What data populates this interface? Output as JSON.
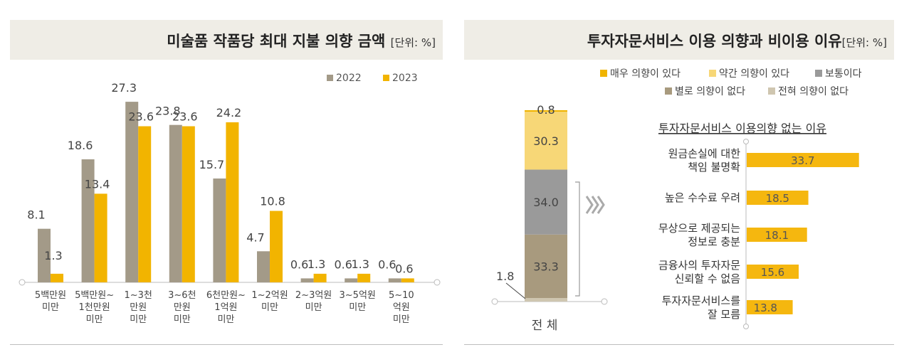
{
  "left_panel": {
    "title": "미술품 작품당 최대 지불 의향 금액",
    "unit": "[단위: %]"
  },
  "right_panel": {
    "title": "투자자문서비스 이용 의향과 비이용 이유",
    "unit": "[단위: %]",
    "legend": [
      "매우 의향이 있다",
      "약간 의향이 있다",
      "보통이다",
      "별로 의향이 없다",
      "전혀 의향이 없다"
    ],
    "reasons_title": "투자자문서비스 이용의향 없는 이유"
  },
  "colors": {
    "y2022": "#a39a88",
    "y2023": "#f2b400",
    "very_likely": "#f0b400",
    "somewhat_likely": "#f7d777",
    "neutral": "#9a9a9a",
    "not_really": "#a89a7e",
    "not_at_all": "#cfc6b0",
    "reason_bar": "#f5b70f"
  },
  "chart_data": [
    {
      "type": "bar",
      "title": "미술품 작품당 최대 지불 의향 금액",
      "categories": [
        [
          "5백만원",
          "미만"
        ],
        [
          "5백만원~",
          "1천만원",
          "미만"
        ],
        [
          "1~3천",
          "만원",
          "미만"
        ],
        [
          "3~6천",
          "만원",
          "미만"
        ],
        [
          "6천만원~",
          "1억원",
          "미만"
        ],
        [
          "1~2억원",
          "미만"
        ],
        [
          "2~3억원",
          "미만"
        ],
        [
          "3~5억원",
          "미만"
        ],
        [
          "5~10",
          "억원",
          "미만"
        ]
      ],
      "series": [
        {
          "name": "2022",
          "values": [
            8.1,
            18.6,
            27.3,
            23.8,
            15.7,
            4.7,
            0.6,
            0.6,
            0.6
          ]
        },
        {
          "name": "2023",
          "values": [
            1.3,
            13.4,
            23.6,
            23.6,
            24.2,
            10.8,
            1.3,
            1.3,
            0.6
          ]
        }
      ],
      "ylim": [
        0,
        30
      ],
      "legend_position": "top-right",
      "grid": false
    },
    {
      "type": "bar",
      "stacked": true,
      "categories": [
        "전 체"
      ],
      "series": [
        {
          "name": "전혀 의향이 없다",
          "values": [
            1.8
          ]
        },
        {
          "name": "별로 의향이 없다",
          "values": [
            33.3
          ]
        },
        {
          "name": "보통이다",
          "values": [
            34.0
          ]
        },
        {
          "name": "약간 의향이 있다",
          "values": [
            30.3
          ]
        },
        {
          "name": "매우 의향이 있다",
          "values": [
            0.8
          ]
        }
      ],
      "ylim": [
        0,
        100
      ],
      "legend_position": "top-right"
    },
    {
      "type": "bar",
      "orientation": "horizontal",
      "title": "투자자문서비스 이용의향 없는 이유",
      "categories": [
        [
          "원금손실에 대한",
          "책임 불명확"
        ],
        [
          "높은 수수료 우려"
        ],
        [
          "무상으로 제공되는",
          "정보로 충분"
        ],
        [
          "금융사의 투자자문",
          "신뢰할 수 없음"
        ],
        [
          "투자자문서비스를",
          "잘 모름"
        ]
      ],
      "values": [
        33.7,
        18.5,
        18.1,
        15.6,
        13.8
      ]
    }
  ]
}
